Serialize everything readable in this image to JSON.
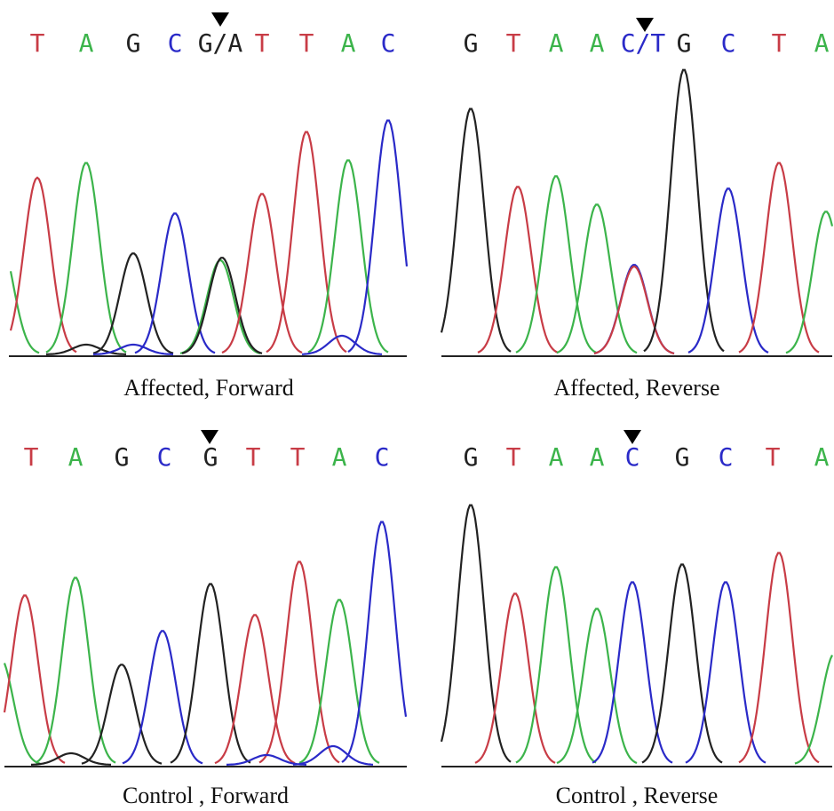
{
  "panels": [
    {
      "bases": [
        "T",
        "A",
        "G",
        "C",
        "G/A",
        "T",
        "T",
        "A",
        "C"
      ],
      "caption": "Affected, Forward"
    },
    {
      "bases": [
        "G",
        "T",
        "A",
        "A",
        "C/T",
        "G",
        "C",
        "T",
        "A"
      ],
      "caption": "Affected, Reverse"
    },
    {
      "bases": [
        "T",
        "A",
        "G",
        "C",
        "G",
        "T",
        "T",
        "A",
        "C"
      ],
      "caption": "Control , Forward"
    },
    {
      "bases": [
        "G",
        "T",
        "A",
        "A",
        "C",
        "G",
        "C",
        "T",
        "A"
      ],
      "caption": "Control , Reverse"
    }
  ]
}
